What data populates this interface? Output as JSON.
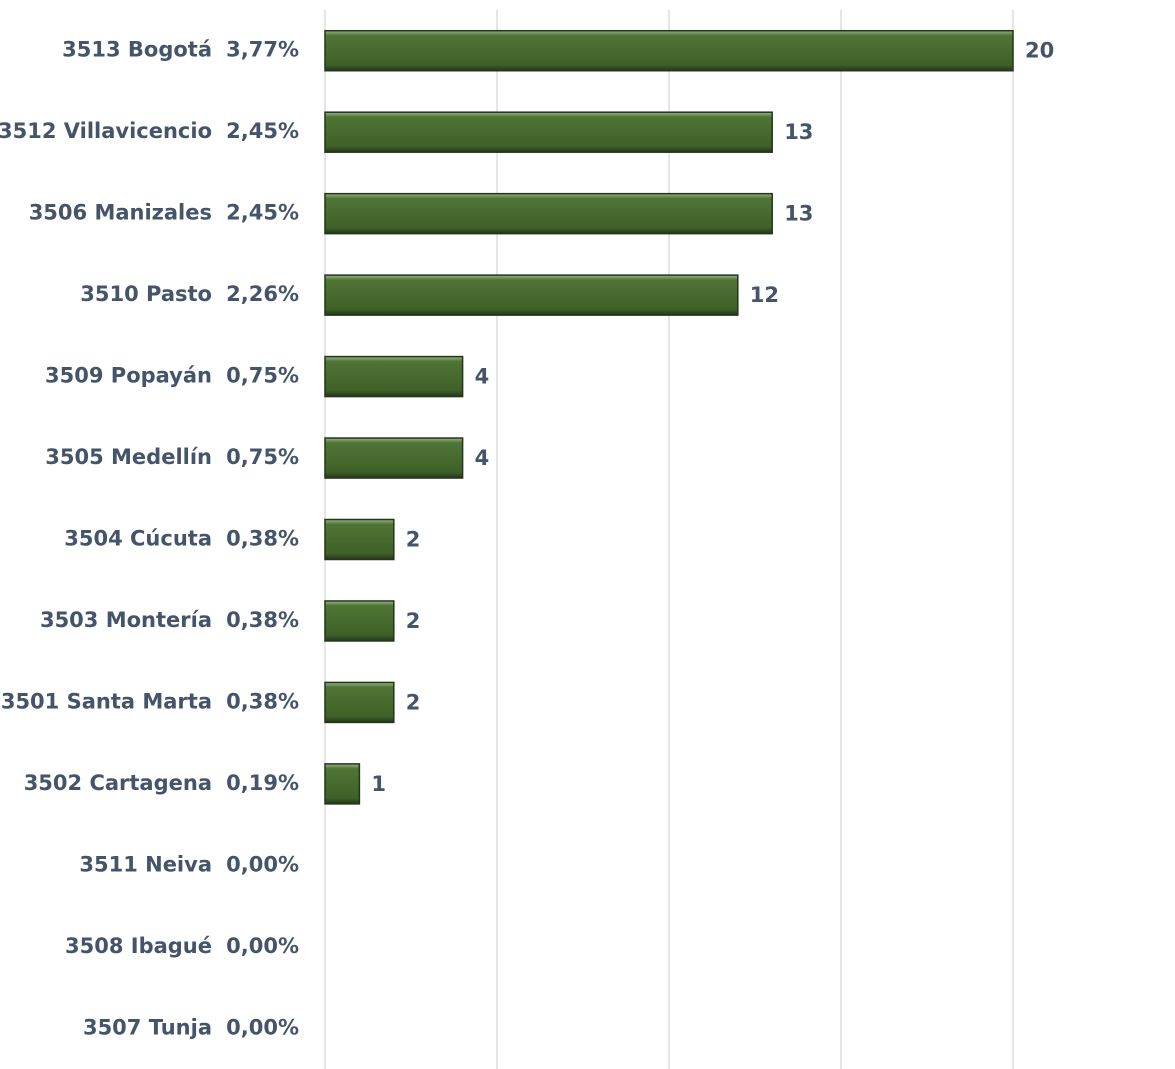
{
  "chart_data": {
    "type": "barh",
    "categories": [
      "3513 Bogotá",
      "3512 Villavicencio",
      "3506 Manizales",
      "3510 Pasto",
      "3509 Popayán",
      "3505 Medellín",
      "3504 Cúcuta",
      "3503 Montería",
      "3501 Santa Marta",
      "3502 Cartagena",
      "3511 Neiva",
      "3508 Ibagué",
      "3507 Tunja"
    ],
    "shares": [
      3.77,
      2.45,
      2.45,
      2.26,
      0.75,
      0.75,
      0.38,
      0.38,
      0.38,
      0.19,
      0,
      0,
      0
    ],
    "share_labels": [
      "3,77%",
      "2,45%",
      "2,45%",
      "2,26%",
      "0,75%",
      "0,75%",
      "0,38%",
      "0,38%",
      "0,38%",
      "0,19%",
      "0,00%",
      "0,00%",
      "0,00%"
    ],
    "values": [
      20,
      13,
      13,
      12,
      4,
      4,
      2,
      2,
      2,
      1,
      null,
      null,
      null
    ],
    "color": "#3f6128",
    "xlim": [
      0,
      20
    ],
    "xticks": [
      0,
      5,
      10,
      15,
      20
    ],
    "grid": true
  }
}
